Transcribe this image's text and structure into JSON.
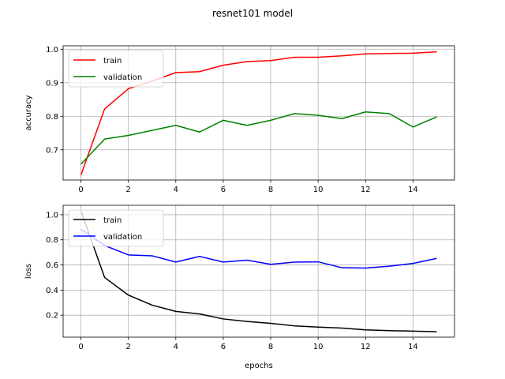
{
  "figure_title": "resnet101 model",
  "chart_data": [
    {
      "type": "line",
      "title": "",
      "xlabel": "",
      "ylabel": "accuracy",
      "xlim": [
        -0.75,
        15.75
      ],
      "ylim": [
        0.61,
        1.01
      ],
      "xticks": [
        0,
        2,
        4,
        6,
        8,
        10,
        12,
        14
      ],
      "yticks": [
        0.7,
        0.8,
        0.9,
        1.0
      ],
      "ytick_labels": [
        "0.7",
        "0.8",
        "0.9",
        "1.0"
      ],
      "grid": true,
      "legend": "top-left",
      "x": [
        0,
        1,
        2,
        3,
        4,
        5,
        6,
        7,
        8,
        9,
        10,
        11,
        12,
        13,
        14,
        15
      ],
      "series": [
        {
          "name": "train",
          "color": "#ff0000",
          "values": [
            0.625,
            0.822,
            0.882,
            0.905,
            0.93,
            0.933,
            0.952,
            0.963,
            0.966,
            0.976,
            0.976,
            0.98,
            0.986,
            0.987,
            0.988,
            0.992
          ]
        },
        {
          "name": "validation",
          "color": "#008000",
          "values": [
            0.657,
            0.732,
            0.743,
            0.758,
            0.773,
            0.753,
            0.788,
            0.773,
            0.788,
            0.808,
            0.803,
            0.793,
            0.813,
            0.808,
            0.768,
            0.798
          ]
        }
      ]
    },
    {
      "type": "line",
      "title": "",
      "xlabel": "epochs",
      "ylabel": "loss",
      "xlim": [
        -0.75,
        15.75
      ],
      "ylim": [
        0.025,
        1.075
      ],
      "xticks": [
        0,
        2,
        4,
        6,
        8,
        10,
        12,
        14
      ],
      "yticks": [
        0.2,
        0.4,
        0.6,
        0.8,
        1.0
      ],
      "ytick_labels": [
        "0.2",
        "0.4",
        "0.6",
        "0.8",
        "1.0"
      ],
      "grid": true,
      "legend": "top-left",
      "x": [
        0,
        1,
        2,
        3,
        4,
        5,
        6,
        7,
        8,
        9,
        10,
        11,
        12,
        13,
        14,
        15
      ],
      "series": [
        {
          "name": "train",
          "color": "#000000",
          "values": [
            1.03,
            0.5,
            0.36,
            0.28,
            0.23,
            0.21,
            0.17,
            0.15,
            0.135,
            0.115,
            0.105,
            0.097,
            0.083,
            0.077,
            0.073,
            0.068
          ]
        },
        {
          "name": "validation",
          "color": "#0000ff",
          "values": [
            0.885,
            0.755,
            0.68,
            0.673,
            0.623,
            0.668,
            0.623,
            0.638,
            0.605,
            0.622,
            0.625,
            0.578,
            0.575,
            0.59,
            0.612,
            0.652
          ]
        }
      ]
    }
  ]
}
